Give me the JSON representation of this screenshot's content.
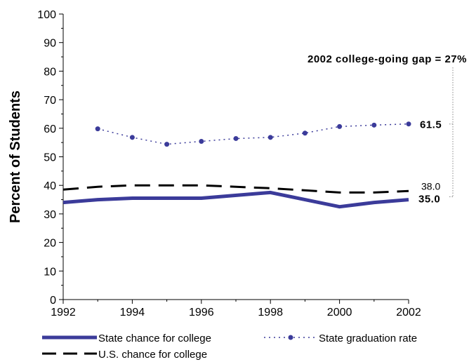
{
  "chart_data": {
    "type": "line",
    "ylabel": "Percent of Students",
    "xlabel": "",
    "ylim": [
      0,
      100
    ],
    "xlim": [
      1992,
      2002
    ],
    "y_ticks": [
      "0",
      "10",
      "20",
      "30",
      "40",
      "50",
      "60",
      "70",
      "80",
      "90",
      "100"
    ],
    "x_ticks": [
      "1992",
      "1994",
      "1996",
      "1998",
      "2000",
      "2002"
    ],
    "grid": false,
    "legend_position": "bottom",
    "series": [
      {
        "name": "State chance for college",
        "style": "thick-solid",
        "color": "#3b3b9a",
        "points": [
          {
            "x": 1992,
            "y": 34.0
          },
          {
            "x": 1993,
            "y": 35.0
          },
          {
            "x": 1994,
            "y": 35.5
          },
          {
            "x": 1996,
            "y": 35.5
          },
          {
            "x": 1998,
            "y": 37.5
          },
          {
            "x": 2000,
            "y": 32.5
          },
          {
            "x": 2001,
            "y": 34.0
          },
          {
            "x": 2002,
            "y": 35.0
          }
        ]
      },
      {
        "name": "State graduation rate",
        "style": "dotted-markers",
        "color": "#3b3b9a",
        "points": [
          {
            "x": 1993,
            "y": 59.8
          },
          {
            "x": 1994,
            "y": 56.8
          },
          {
            "x": 1995,
            "y": 54.4
          },
          {
            "x": 1996,
            "y": 55.4
          },
          {
            "x": 1997,
            "y": 56.4
          },
          {
            "x": 1998,
            "y": 56.8
          },
          {
            "x": 1999,
            "y": 58.3
          },
          {
            "x": 2000,
            "y": 60.6
          },
          {
            "x": 2001,
            "y": 61.1
          },
          {
            "x": 2002,
            "y": 61.5
          }
        ]
      },
      {
        "name": "U.S. chance for college",
        "style": "dashed",
        "color": "#000000",
        "points": [
          {
            "x": 1992,
            "y": 38.5
          },
          {
            "x": 1993,
            "y": 39.5
          },
          {
            "x": 1994,
            "y": 40.0
          },
          {
            "x": 1996,
            "y": 40.0
          },
          {
            "x": 1998,
            "y": 39.0
          },
          {
            "x": 2000,
            "y": 37.5
          },
          {
            "x": 2001,
            "y": 37.5
          },
          {
            "x": 2002,
            "y": 38.0
          }
        ]
      }
    ],
    "annotations": {
      "gap_label": "2002 college-going gap = 27%",
      "grad_end_label": "61.5",
      "us_end_label": "38.0",
      "state_end_label": "35.0"
    }
  }
}
